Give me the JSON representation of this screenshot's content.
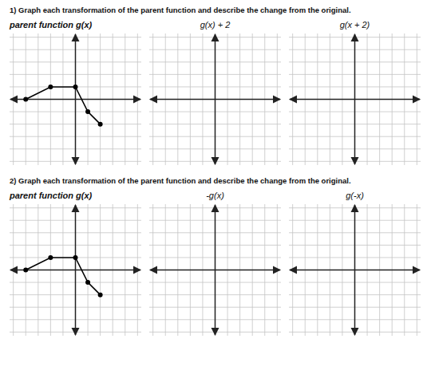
{
  "chart_data": [
    {
      "type": "line",
      "title": "1) Graph each transformation of the parent function and describe the change from the original.",
      "subtitle": "parent function g(x)",
      "x": [
        -4,
        -2,
        0,
        1,
        2
      ],
      "values": [
        0,
        1,
        1,
        -1,
        -2
      ],
      "color": "#000000",
      "marker": "circle",
      "xlim": [
        -5.3,
        5.3
      ],
      "ylim": [
        -5.3,
        5.3
      ],
      "xticks": [
        -5,
        -4,
        -3,
        -2,
        -1,
        0,
        1,
        2,
        3,
        4,
        5
      ],
      "yticks": [
        -5,
        -4,
        -3,
        -2,
        -1,
        0,
        1,
        2,
        3,
        4,
        5
      ],
      "grid": true,
      "tick_labels": false
    },
    {
      "type": "line",
      "subtitle": "g(x) + 2",
      "xlim": [
        -5.3,
        5.3
      ],
      "ylim": [
        -5.3,
        5.3
      ],
      "xticks": [
        -5,
        -4,
        -3,
        -2,
        -1,
        0,
        1,
        2,
        3,
        4,
        5
      ],
      "yticks": [
        -5,
        -4,
        -3,
        -2,
        -1,
        0,
        1,
        2,
        3,
        4,
        5
      ],
      "grid": true,
      "tick_labels": false
    },
    {
      "type": "line",
      "subtitle": "g(x + 2)",
      "xlim": [
        -5.3,
        5.3
      ],
      "ylim": [
        -5.3,
        5.3
      ],
      "xticks": [
        -5,
        -4,
        -3,
        -2,
        -1,
        0,
        1,
        2,
        3,
        4,
        5
      ],
      "yticks": [
        -5,
        -4,
        -3,
        -2,
        -1,
        0,
        1,
        2,
        3,
        4,
        5
      ],
      "grid": true,
      "tick_labels": false
    },
    {
      "type": "line",
      "title": "2) Graph each transformation of the parent function and describe the change from the original.",
      "subtitle": "parent function g(x)",
      "x": [
        -4,
        -2,
        0,
        1,
        2
      ],
      "values": [
        0,
        1,
        1,
        -1,
        -2
      ],
      "color": "#000000",
      "marker": "circle",
      "xlim": [
        -5.3,
        5.3
      ],
      "ylim": [
        -5.3,
        5.3
      ],
      "xticks": [
        -5,
        -4,
        -3,
        -2,
        -1,
        0,
        1,
        2,
        3,
        4,
        5
      ],
      "yticks": [
        -5,
        -4,
        -3,
        -2,
        -1,
        0,
        1,
        2,
        3,
        4,
        5
      ],
      "grid": true,
      "tick_labels": false
    },
    {
      "type": "line",
      "subtitle": "-g(x)",
      "xlim": [
        -5.3,
        5.3
      ],
      "ylim": [
        -5.3,
        5.3
      ],
      "xticks": [
        -5,
        -4,
        -3,
        -2,
        -1,
        0,
        1,
        2,
        3,
        4,
        5
      ],
      "yticks": [
        -5,
        -4,
        -3,
        -2,
        -1,
        0,
        1,
        2,
        3,
        4,
        5
      ],
      "grid": true,
      "tick_labels": false
    },
    {
      "type": "line",
      "subtitle": "g(-x)",
      "xlim": [
        -5.3,
        5.3
      ],
      "ylim": [
        -5.3,
        5.3
      ],
      "xticks": [
        -5,
        -4,
        -3,
        -2,
        -1,
        0,
        1,
        2,
        3,
        4,
        5
      ],
      "yticks": [
        -5,
        -4,
        -3,
        -2,
        -1,
        0,
        1,
        2,
        3,
        4,
        5
      ],
      "grid": true,
      "tick_labels": false
    }
  ]
}
